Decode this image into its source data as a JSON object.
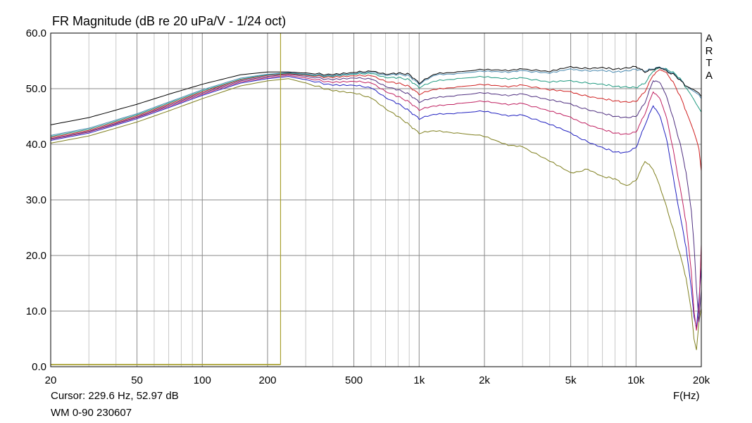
{
  "title": "FR Magnitude (dB re 20 uPa/V - 1/24 oct)",
  "logo_letters": [
    "A",
    "R",
    "T",
    "A"
  ],
  "cursor_readout": "Cursor: 229.6 Hz, 52.97 dB",
  "footnote": "WM 0-90 230607",
  "chart_data": {
    "type": "line",
    "title": "FR Magnitude (dB re 20 uPa/V - 1/24 oct)",
    "xlabel": "F(Hz)",
    "ylabel": "",
    "xscale": "log",
    "xlim": [
      20,
      20000
    ],
    "ylim": [
      0,
      60
    ],
    "grid": true,
    "x_tick_labels": [
      "20",
      "50",
      "100",
      "200",
      "500",
      "1k",
      "2k",
      "5k",
      "10k",
      "20k"
    ],
    "x_tick_values": [
      20,
      50,
      100,
      200,
      500,
      1000,
      2000,
      5000,
      10000,
      20000
    ],
    "y_tick_labels": [
      "0.0",
      "10.0",
      "20.0",
      "30.0",
      "40.0",
      "50.0",
      "60.0"
    ],
    "y_tick_values": [
      0,
      10,
      20,
      30,
      40,
      50,
      60
    ],
    "cursor": {
      "freq": 229.6,
      "db": 52.97,
      "color": "#a8a030"
    },
    "x": [
      20,
      30,
      50,
      70,
      100,
      150,
      200,
      250,
      300,
      400,
      500,
      600,
      700,
      800,
      900,
      1000,
      1200,
      1500,
      2000,
      2500,
      3000,
      4000,
      5000,
      6000,
      7000,
      8000,
      9000,
      10000,
      11000,
      12000,
      13000,
      14000,
      15000,
      16000,
      17000,
      18000,
      18500,
      19000,
      19500,
      20000
    ],
    "series": [
      {
        "color": "#000000",
        "values": [
          43.5,
          44.8,
          47.2,
          49.0,
          50.8,
          52.5,
          53.0,
          53.0,
          52.8,
          52.5,
          52.9,
          53.2,
          52.6,
          52.8,
          52.6,
          51.0,
          52.8,
          53.0,
          53.5,
          53.3,
          53.5,
          53.1,
          53.9,
          53.6,
          53.8,
          53.5,
          53.7,
          54.0,
          53.0,
          53.5,
          53.8,
          53.0,
          52.5,
          51.5,
          50.5,
          50.0,
          49.8,
          49.5,
          49.2,
          48.6
        ]
      },
      {
        "color": "#4a8ab0",
        "values": [
          41.6,
          42.9,
          45.5,
          47.6,
          49.8,
          51.9,
          52.6,
          52.9,
          52.6,
          52.3,
          52.7,
          53.0,
          52.4,
          52.6,
          52.3,
          50.8,
          52.6,
          52.7,
          53.2,
          53.0,
          53.2,
          52.8,
          53.5,
          53.2,
          53.3,
          53.0,
          53.2,
          53.5,
          53.2,
          53.6,
          53.9,
          53.2,
          52.6,
          51.6,
          50.5,
          49.8,
          49.5,
          49.2,
          48.9,
          48.2
        ]
      },
      {
        "color": "#209a80",
        "values": [
          41.4,
          42.7,
          45.3,
          47.4,
          49.6,
          51.7,
          52.5,
          52.8,
          52.5,
          52.2,
          52.6,
          52.8,
          52.0,
          52.0,
          51.6,
          50.2,
          51.5,
          51.8,
          52.2,
          51.8,
          51.9,
          51.2,
          51.4,
          51.0,
          50.8,
          50.4,
          50.3,
          50.2,
          51.0,
          53.2,
          53.8,
          53.4,
          52.8,
          51.8,
          50.2,
          48.8,
          48.0,
          47.2,
          46.5,
          45.8
        ]
      },
      {
        "color": "#d02020",
        "values": [
          41.2,
          42.5,
          45.1,
          47.2,
          49.4,
          51.6,
          52.4,
          52.7,
          52.4,
          52.0,
          52.3,
          52.4,
          51.3,
          51.0,
          50.4,
          49.0,
          50.0,
          50.3,
          50.8,
          50.4,
          50.6,
          49.8,
          49.4,
          48.6,
          48.2,
          47.8,
          47.6,
          47.7,
          49.5,
          52.5,
          53.5,
          52.6,
          50.8,
          48.6,
          46.0,
          43.5,
          42.2,
          40.8,
          39.2,
          35.2
        ]
      },
      {
        "color": "#503080",
        "values": [
          41.0,
          42.3,
          44.9,
          47.0,
          49.2,
          51.4,
          52.2,
          52.6,
          52.2,
          51.6,
          51.9,
          51.8,
          50.4,
          49.8,
          49.0,
          47.6,
          48.5,
          48.8,
          49.3,
          48.8,
          49.0,
          48.0,
          47.2,
          46.2,
          45.6,
          45.0,
          44.8,
          45.0,
          47.5,
          51.5,
          51.0,
          48.0,
          44.0,
          40.0,
          35.0,
          28.0,
          22.0,
          14.0,
          8.0,
          14.0
        ]
      },
      {
        "color": "#c02060",
        "values": [
          40.9,
          42.2,
          44.8,
          46.8,
          49.0,
          51.2,
          52.0,
          52.4,
          51.9,
          51.1,
          51.3,
          51.1,
          49.5,
          48.6,
          47.6,
          46.2,
          47.0,
          47.3,
          47.8,
          47.2,
          47.3,
          46.0,
          44.8,
          43.5,
          42.7,
          42.0,
          41.8,
          42.2,
          45.5,
          49.5,
          48.0,
          44.0,
          38.0,
          32.0,
          26.0,
          17.0,
          10.0,
          6.5,
          10.0,
          22.0
        ]
      },
      {
        "color": "#2020c0",
        "values": [
          40.7,
          42.0,
          44.6,
          46.6,
          48.8,
          51.0,
          51.8,
          52.2,
          51.6,
          50.6,
          50.6,
          50.2,
          48.4,
          47.3,
          46.0,
          44.6,
          45.5,
          45.6,
          46.0,
          45.2,
          45.2,
          43.6,
          42.0,
          40.4,
          39.4,
          38.6,
          38.5,
          39.4,
          43.5,
          47.0,
          44.8,
          40.0,
          33.0,
          27.0,
          21.5,
          14.0,
          9.0,
          7.0,
          12.0,
          18.0
        ]
      },
      {
        "color": "#808020",
        "values": [
          40.2,
          41.5,
          44.0,
          46.0,
          48.2,
          50.5,
          51.4,
          51.8,
          51.0,
          49.6,
          49.2,
          48.4,
          46.4,
          45.0,
          43.5,
          42.0,
          42.5,
          42.0,
          41.5,
          40.0,
          39.5,
          37.0,
          34.8,
          35.5,
          34.2,
          33.8,
          32.5,
          33.5,
          37.0,
          35.5,
          32.0,
          28.0,
          24.0,
          20.0,
          16.0,
          10.0,
          5.0,
          3.0,
          8.0,
          10.5
        ]
      }
    ]
  }
}
